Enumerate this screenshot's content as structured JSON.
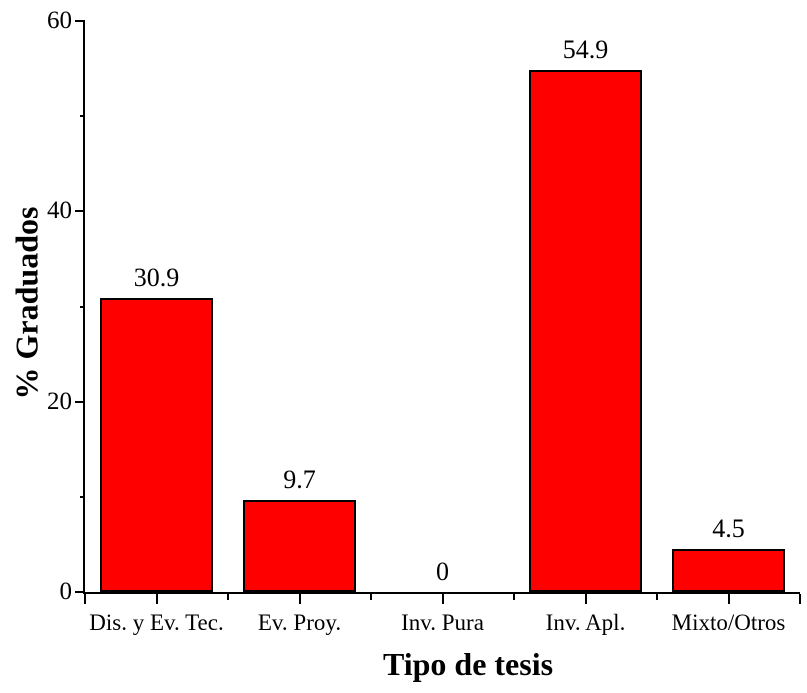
{
  "chart_data": {
    "type": "bar",
    "categories": [
      "Dis. y Ev. Tec.",
      "Ev. Proy.",
      "Inv. Pura",
      "Inv. Apl.",
      "Mixto/Otros"
    ],
    "values": [
      30.9,
      9.7,
      0,
      54.9,
      4.5
    ],
    "value_labels": [
      "30.9",
      "9.7",
      "0",
      "54.9",
      "4.5"
    ],
    "title": "",
    "xlabel": "Tipo de tesis",
    "ylabel": "% Graduados",
    "ylim": [
      0,
      60
    ],
    "yticks_major": [
      0,
      20,
      40,
      60
    ],
    "ytick_labels": [
      "0",
      "20",
      "40",
      "60"
    ],
    "yticks_minor": [
      10,
      30,
      50
    ],
    "bar_color": "#FF0000",
    "bar_edge_color": "#000000",
    "axis_color": "#000000",
    "text_color": "#000000",
    "background": "#FFFFFF",
    "grid": false,
    "legend": ""
  }
}
